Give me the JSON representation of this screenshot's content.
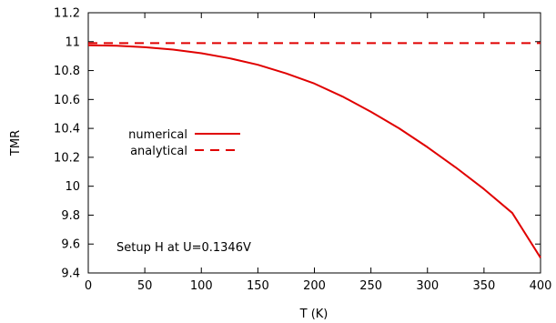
{
  "chart_data": {
    "type": "line",
    "title": "",
    "xlabel": "T (K)",
    "ylabel": "TMR",
    "xlim": [
      0,
      400
    ],
    "ylim": [
      9.4,
      11.2
    ],
    "xticks": [
      0,
      50,
      100,
      150,
      200,
      250,
      300,
      350,
      400
    ],
    "xtick_labels": [
      "0",
      "50",
      "100",
      "150",
      "200",
      "250",
      "300",
      "350",
      "400"
    ],
    "yticks": [
      9.4,
      9.6,
      9.8,
      10,
      10.2,
      10.4,
      10.6,
      10.8,
      11,
      11.2
    ],
    "ytick_labels": [
      "9.4",
      "9.6",
      "9.8",
      "10",
      "10.2",
      "10.4",
      "10.6",
      "10.8",
      "11",
      "11.2"
    ],
    "grid": false,
    "legend_position": "middle-left",
    "annotation": "Setup H at U=0.1346V",
    "series": [
      {
        "name": "numerical",
        "style": "solid",
        "color": "#e00000",
        "x": [
          0,
          25,
          50,
          75,
          100,
          125,
          150,
          175,
          200,
          225,
          250,
          275,
          300,
          325,
          350,
          375,
          400
        ],
        "y": [
          10.975,
          10.972,
          10.962,
          10.945,
          10.92,
          10.885,
          10.84,
          10.78,
          10.71,
          10.62,
          10.515,
          10.4,
          10.27,
          10.13,
          9.98,
          9.815,
          9.505
        ]
      },
      {
        "name": "analytical",
        "style": "dashed",
        "color": "#e00000",
        "x": [
          0,
          400
        ],
        "y": [
          10.99,
          10.99
        ]
      }
    ]
  }
}
